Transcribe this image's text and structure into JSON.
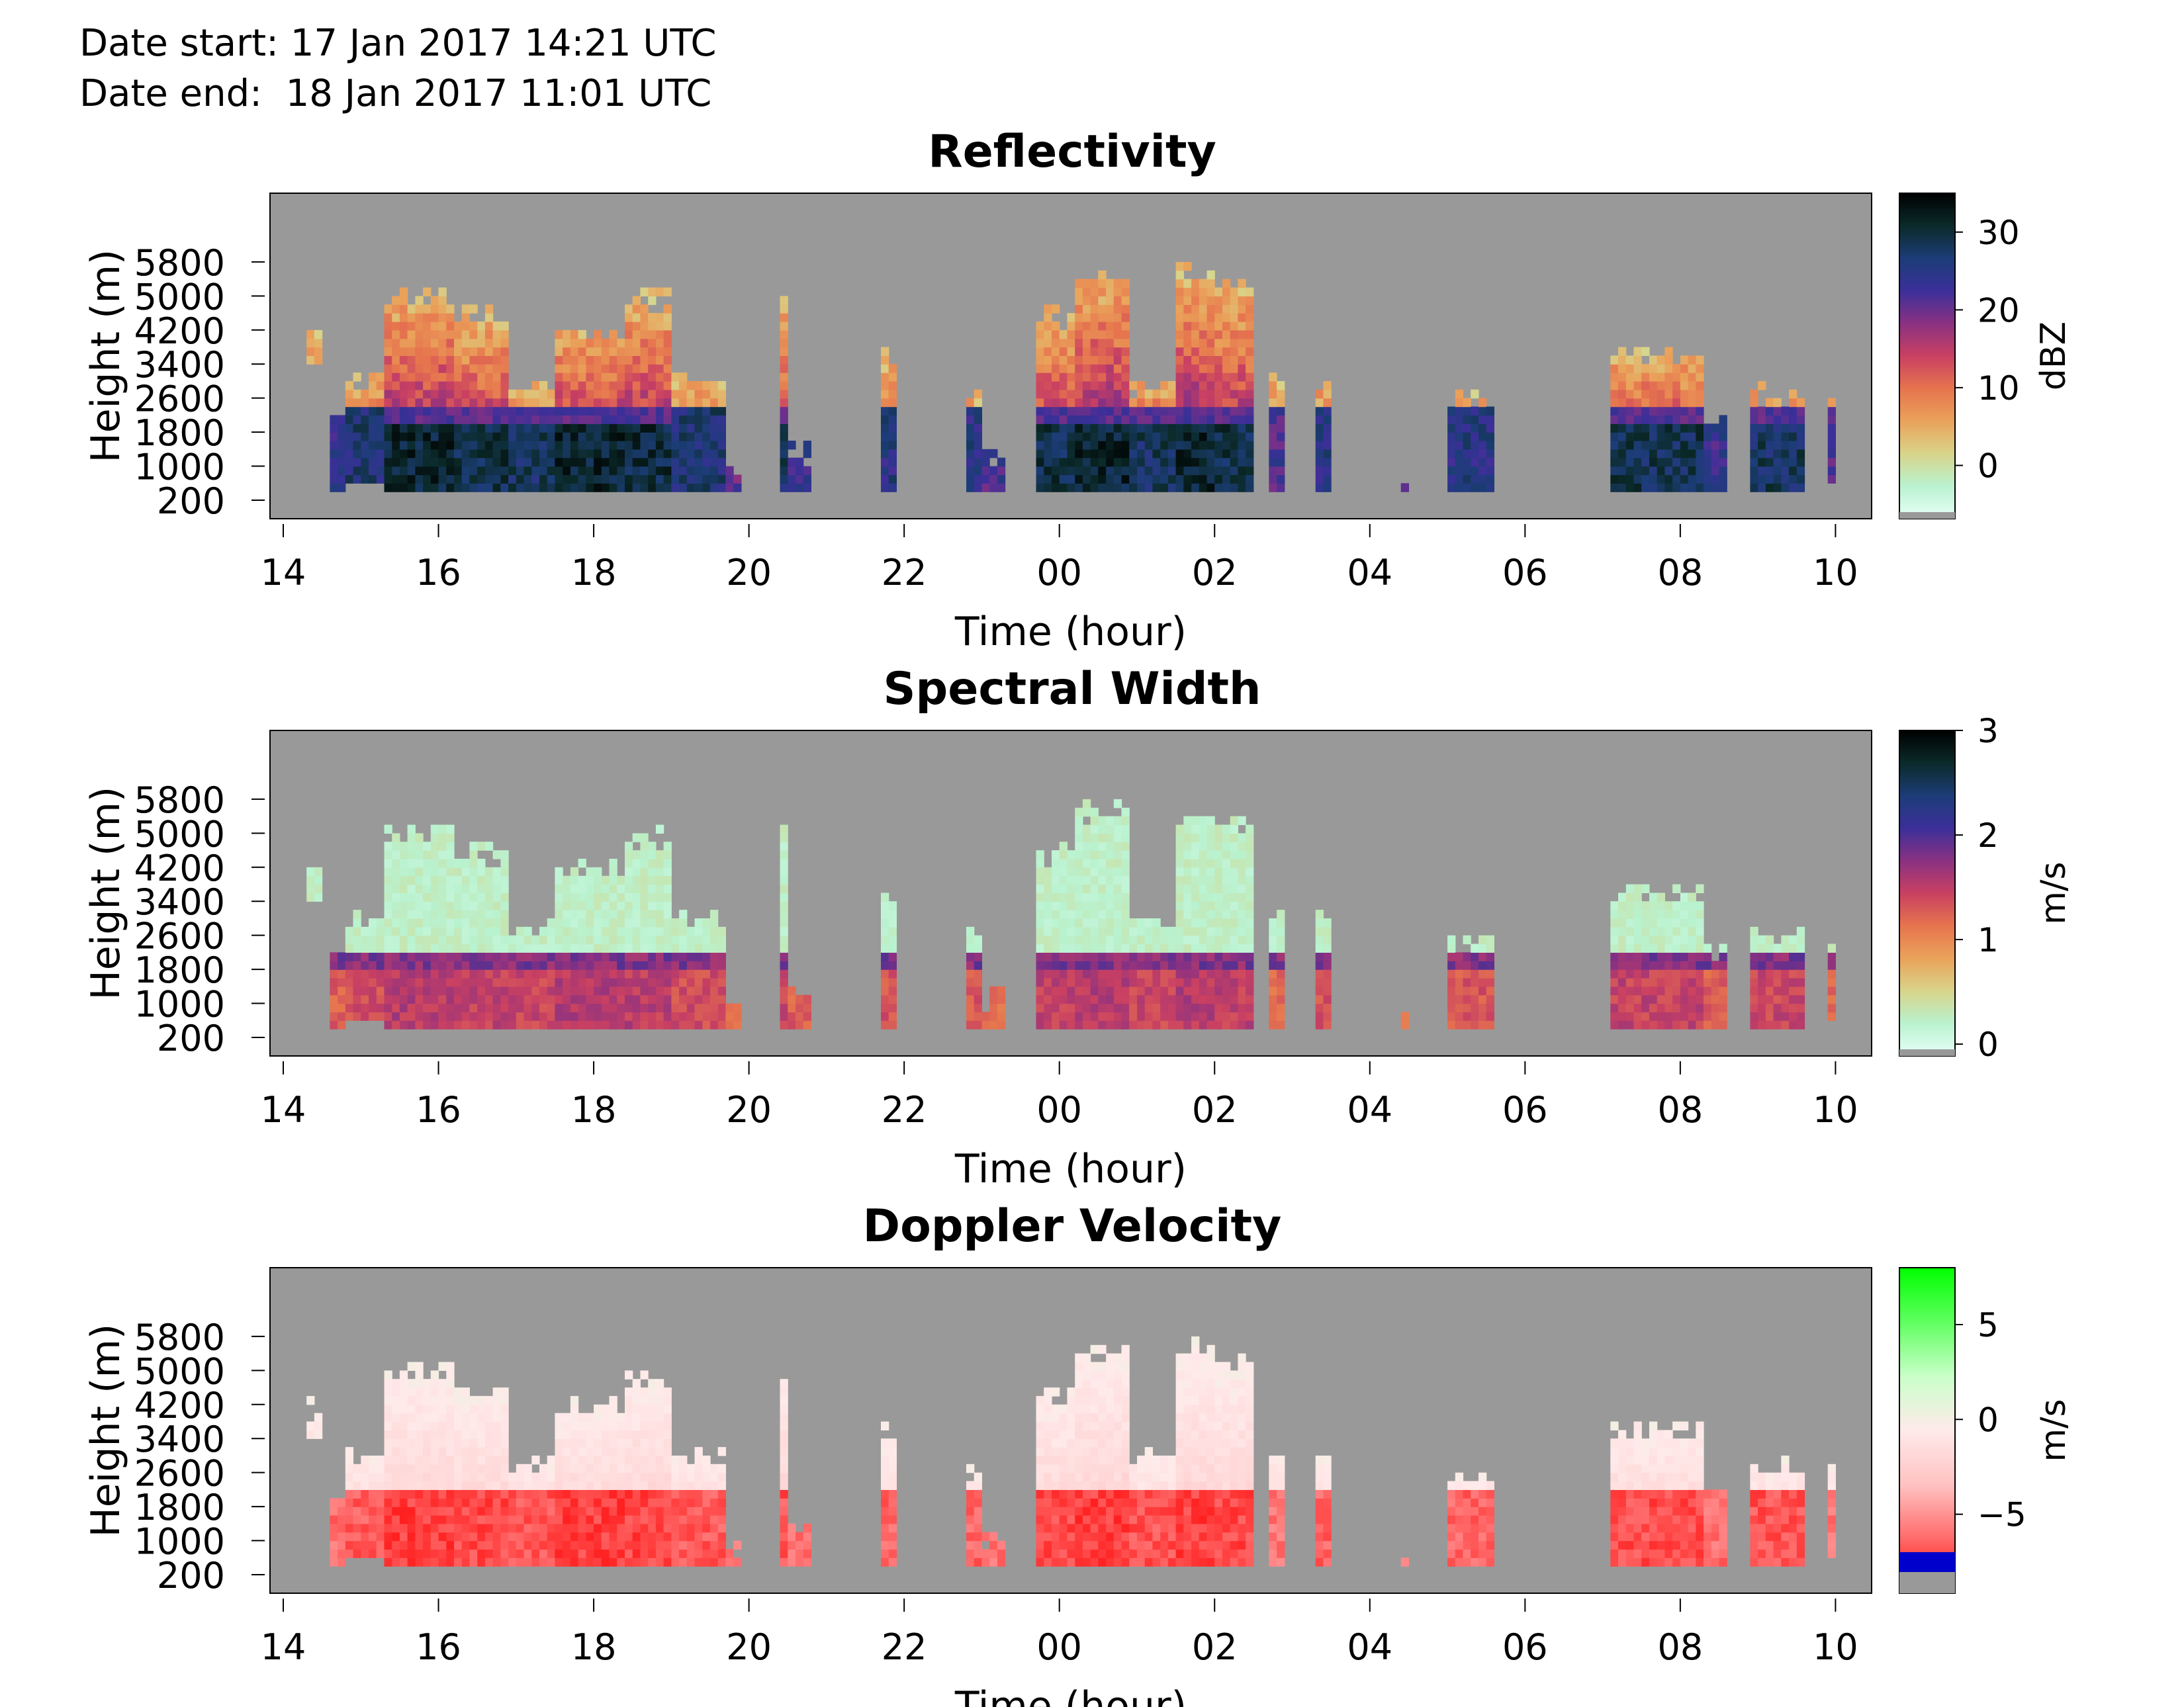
{
  "header": {
    "date_start": "Date start: 17 Jan 2017 14:21 UTC",
    "date_end": "Date end:  18 Jan 2017 11:01 UTC"
  },
  "chart_data": [
    {
      "type": "heatmap",
      "title": "Reflectivity",
      "xlabel": "Time (hour)",
      "ylabel": "Height (m)",
      "x_ticks": [
        "14",
        "16",
        "18",
        "20",
        "22",
        "00",
        "02",
        "04",
        "06",
        "08",
        "10"
      ],
      "y_ticks": [
        "200",
        "1000",
        "1800",
        "2600",
        "3400",
        "4200",
        "5000",
        "5800"
      ],
      "colorbar": {
        "label": "dBZ",
        "ticks": [
          "0",
          "10",
          "20",
          "30"
        ],
        "range": [
          -6,
          35
        ],
        "colors": [
          "#e8fff8",
          "#b9f2cf",
          "#d8d48a",
          "#eaa25a",
          "#e6744e",
          "#c94062",
          "#8a3182",
          "#3b2f99",
          "#1c3d77",
          "#0b2a2a",
          "#000000"
        ]
      }
    },
    {
      "type": "heatmap",
      "title": "Spectral Width",
      "xlabel": "Time (hour)",
      "ylabel": "Height (m)",
      "x_ticks": [
        "14",
        "16",
        "18",
        "20",
        "22",
        "00",
        "02",
        "04",
        "06",
        "08",
        "10"
      ],
      "y_ticks": [
        "200",
        "1000",
        "1800",
        "2600",
        "3400",
        "4200",
        "5000",
        "5800"
      ],
      "colorbar": {
        "label": "m/s",
        "ticks": [
          "0",
          "1",
          "2",
          "3"
        ],
        "range": [
          -0.05,
          3
        ],
        "colors": [
          "#e8fff8",
          "#b9f2cf",
          "#d8d48a",
          "#eaa25a",
          "#e6744e",
          "#c94062",
          "#8a3182",
          "#3b2f99",
          "#1c3d77",
          "#0b2a2a",
          "#000000"
        ]
      }
    },
    {
      "type": "heatmap",
      "title": "Doppler Velocity",
      "xlabel": "Time (hour)",
      "ylabel": "Height (m)",
      "x_ticks": [
        "14",
        "16",
        "18",
        "20",
        "22",
        "00",
        "02",
        "04",
        "06",
        "08",
        "10"
      ],
      "y_ticks": [
        "200",
        "1000",
        "1800",
        "2600",
        "3400",
        "4200",
        "5000",
        "5800"
      ],
      "colorbar": {
        "label": "m/s",
        "ticks": [
          "−5",
          "0",
          "5"
        ],
        "range": [
          -7,
          8
        ],
        "colors": [
          "#ff0000",
          "#ff6a6a",
          "#ffc2c2",
          "#ffeaea",
          "#c9ffc9",
          "#5fff5f",
          "#00ff00"
        ]
      }
    }
  ]
}
